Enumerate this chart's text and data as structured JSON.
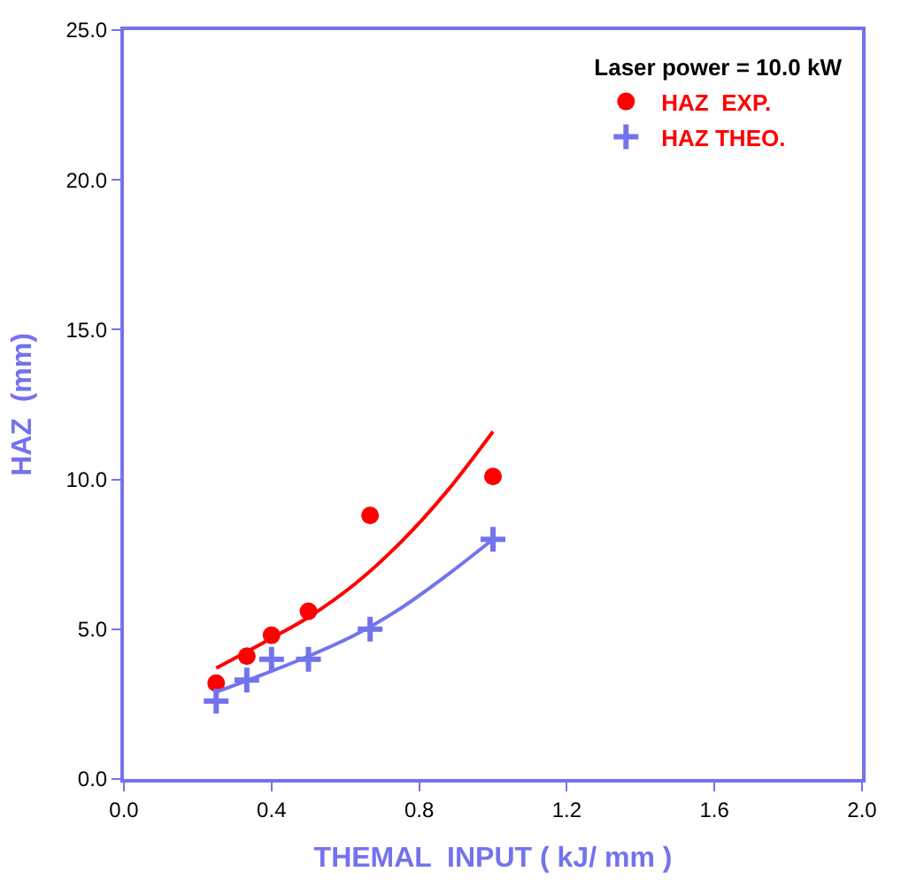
{
  "chart_data": {
    "type": "scatter",
    "xlabel": "THEMAL  INPUT ( kJ/ mm )",
    "ylabel": "HAZ  (mm)",
    "legend_title": "Laser power = 10.0 kW",
    "legend": "top right",
    "xlim": [
      0,
      2.0
    ],
    "xticks": [
      {
        "value": 0,
        "label": "0.0"
      },
      0.4,
      0.8,
      1.2,
      1.6,
      {
        "value": 2,
        "label": "2.0"
      }
    ],
    "ylim": [
      0,
      25
    ],
    "yticks": [
      {
        "value": 0,
        "label": "0.0"
      },
      {
        "value": 5,
        "label": "5.0"
      },
      {
        "value": 10,
        "label": "10.0"
      },
      {
        "value": 15,
        "label": "15.0"
      },
      {
        "value": 20,
        "label": "20.0"
      },
      {
        "value": 25,
        "label": "25.0"
      }
    ],
    "series": [
      {
        "name": "HAZ  EXP.",
        "marker": "circle",
        "color": "#ff0000",
        "x": [
          0.25,
          0.333,
          0.4,
          0.5,
          0.667,
          1.0
        ],
        "values": [
          3.2,
          4.1,
          4.8,
          5.6,
          8.8,
          10.1
        ]
      },
      {
        "name": "HAZ THEO.",
        "marker": "cross",
        "color": "#7373ee",
        "x": [
          0.25,
          0.333,
          0.4,
          0.5,
          0.667,
          1.0
        ],
        "values": [
          2.6,
          3.3,
          4.0,
          4.0,
          5.0,
          8.0
        ]
      },
      {
        "type": "line",
        "color": "#ff0000",
        "x": [
          0.25,
          0.4,
          0.5,
          0.625,
          0.75,
          0.875,
          1.0
        ],
        "values": [
          3.7,
          4.7,
          5.4,
          6.5,
          7.9,
          9.6,
          11.6
        ]
      },
      {
        "type": "line",
        "color": "#7373ee",
        "x": [
          0.25,
          0.4,
          0.5,
          0.625,
          0.75,
          0.875,
          1.0
        ],
        "values": [
          2.9,
          3.6,
          4.1,
          4.8,
          5.7,
          6.8,
          8.0
        ]
      }
    ]
  }
}
